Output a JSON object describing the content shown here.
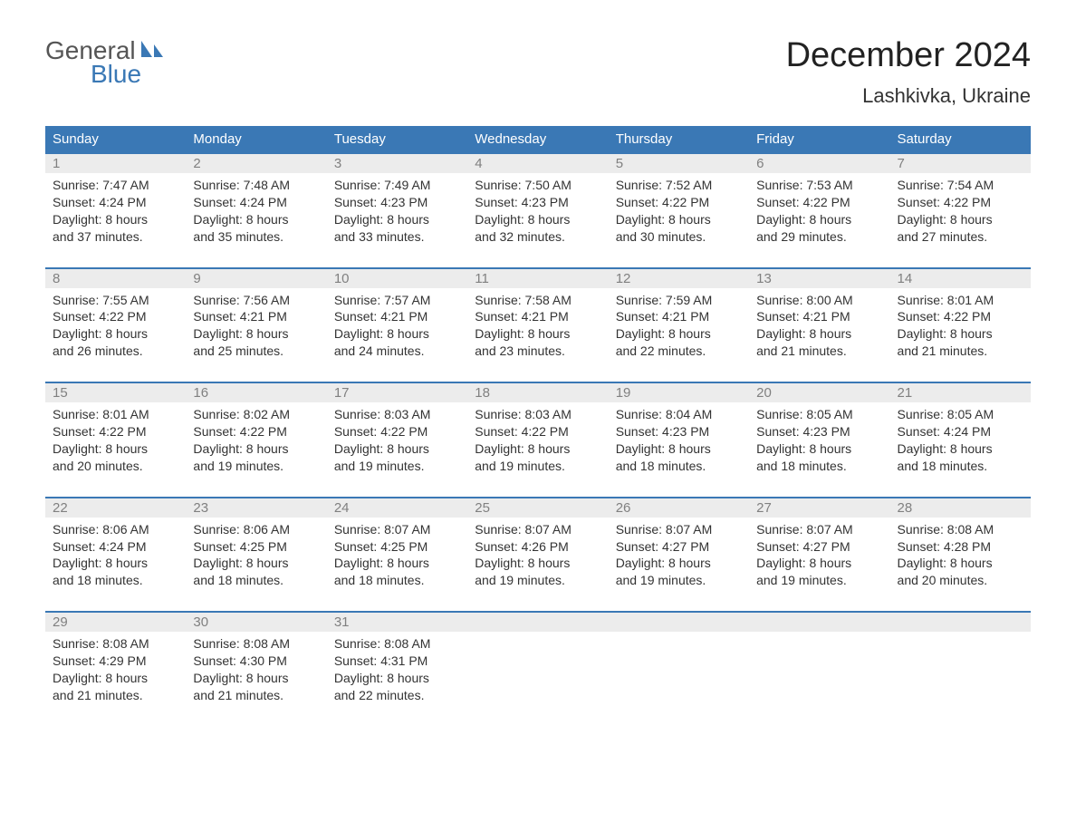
{
  "logo": {
    "text_general": "General",
    "text_blue": "Blue",
    "sail_color": "#3a78b5"
  },
  "title": "December 2024",
  "location": "Lashkivka, Ukraine",
  "colors": {
    "header_bg": "#3a78b5",
    "header_text": "#ffffff",
    "daynum_bg": "#ececec",
    "daynum_text": "#808080",
    "body_text": "#333333",
    "row_border": "#3a78b5",
    "page_bg": "#ffffff"
  },
  "day_headers": [
    "Sunday",
    "Monday",
    "Tuesday",
    "Wednesday",
    "Thursday",
    "Friday",
    "Saturday"
  ],
  "weeks": [
    [
      {
        "num": "1",
        "sunrise": "Sunrise: 7:47 AM",
        "sunset": "Sunset: 4:24 PM",
        "dl1": "Daylight: 8 hours",
        "dl2": "and 37 minutes."
      },
      {
        "num": "2",
        "sunrise": "Sunrise: 7:48 AM",
        "sunset": "Sunset: 4:24 PM",
        "dl1": "Daylight: 8 hours",
        "dl2": "and 35 minutes."
      },
      {
        "num": "3",
        "sunrise": "Sunrise: 7:49 AM",
        "sunset": "Sunset: 4:23 PM",
        "dl1": "Daylight: 8 hours",
        "dl2": "and 33 minutes."
      },
      {
        "num": "4",
        "sunrise": "Sunrise: 7:50 AM",
        "sunset": "Sunset: 4:23 PM",
        "dl1": "Daylight: 8 hours",
        "dl2": "and 32 minutes."
      },
      {
        "num": "5",
        "sunrise": "Sunrise: 7:52 AM",
        "sunset": "Sunset: 4:22 PM",
        "dl1": "Daylight: 8 hours",
        "dl2": "and 30 minutes."
      },
      {
        "num": "6",
        "sunrise": "Sunrise: 7:53 AM",
        "sunset": "Sunset: 4:22 PM",
        "dl1": "Daylight: 8 hours",
        "dl2": "and 29 minutes."
      },
      {
        "num": "7",
        "sunrise": "Sunrise: 7:54 AM",
        "sunset": "Sunset: 4:22 PM",
        "dl1": "Daylight: 8 hours",
        "dl2": "and 27 minutes."
      }
    ],
    [
      {
        "num": "8",
        "sunrise": "Sunrise: 7:55 AM",
        "sunset": "Sunset: 4:22 PM",
        "dl1": "Daylight: 8 hours",
        "dl2": "and 26 minutes."
      },
      {
        "num": "9",
        "sunrise": "Sunrise: 7:56 AM",
        "sunset": "Sunset: 4:21 PM",
        "dl1": "Daylight: 8 hours",
        "dl2": "and 25 minutes."
      },
      {
        "num": "10",
        "sunrise": "Sunrise: 7:57 AM",
        "sunset": "Sunset: 4:21 PM",
        "dl1": "Daylight: 8 hours",
        "dl2": "and 24 minutes."
      },
      {
        "num": "11",
        "sunrise": "Sunrise: 7:58 AM",
        "sunset": "Sunset: 4:21 PM",
        "dl1": "Daylight: 8 hours",
        "dl2": "and 23 minutes."
      },
      {
        "num": "12",
        "sunrise": "Sunrise: 7:59 AM",
        "sunset": "Sunset: 4:21 PM",
        "dl1": "Daylight: 8 hours",
        "dl2": "and 22 minutes."
      },
      {
        "num": "13",
        "sunrise": "Sunrise: 8:00 AM",
        "sunset": "Sunset: 4:21 PM",
        "dl1": "Daylight: 8 hours",
        "dl2": "and 21 minutes."
      },
      {
        "num": "14",
        "sunrise": "Sunrise: 8:01 AM",
        "sunset": "Sunset: 4:22 PM",
        "dl1": "Daylight: 8 hours",
        "dl2": "and 21 minutes."
      }
    ],
    [
      {
        "num": "15",
        "sunrise": "Sunrise: 8:01 AM",
        "sunset": "Sunset: 4:22 PM",
        "dl1": "Daylight: 8 hours",
        "dl2": "and 20 minutes."
      },
      {
        "num": "16",
        "sunrise": "Sunrise: 8:02 AM",
        "sunset": "Sunset: 4:22 PM",
        "dl1": "Daylight: 8 hours",
        "dl2": "and 19 minutes."
      },
      {
        "num": "17",
        "sunrise": "Sunrise: 8:03 AM",
        "sunset": "Sunset: 4:22 PM",
        "dl1": "Daylight: 8 hours",
        "dl2": "and 19 minutes."
      },
      {
        "num": "18",
        "sunrise": "Sunrise: 8:03 AM",
        "sunset": "Sunset: 4:22 PM",
        "dl1": "Daylight: 8 hours",
        "dl2": "and 19 minutes."
      },
      {
        "num": "19",
        "sunrise": "Sunrise: 8:04 AM",
        "sunset": "Sunset: 4:23 PM",
        "dl1": "Daylight: 8 hours",
        "dl2": "and 18 minutes."
      },
      {
        "num": "20",
        "sunrise": "Sunrise: 8:05 AM",
        "sunset": "Sunset: 4:23 PM",
        "dl1": "Daylight: 8 hours",
        "dl2": "and 18 minutes."
      },
      {
        "num": "21",
        "sunrise": "Sunrise: 8:05 AM",
        "sunset": "Sunset: 4:24 PM",
        "dl1": "Daylight: 8 hours",
        "dl2": "and 18 minutes."
      }
    ],
    [
      {
        "num": "22",
        "sunrise": "Sunrise: 8:06 AM",
        "sunset": "Sunset: 4:24 PM",
        "dl1": "Daylight: 8 hours",
        "dl2": "and 18 minutes."
      },
      {
        "num": "23",
        "sunrise": "Sunrise: 8:06 AM",
        "sunset": "Sunset: 4:25 PM",
        "dl1": "Daylight: 8 hours",
        "dl2": "and 18 minutes."
      },
      {
        "num": "24",
        "sunrise": "Sunrise: 8:07 AM",
        "sunset": "Sunset: 4:25 PM",
        "dl1": "Daylight: 8 hours",
        "dl2": "and 18 minutes."
      },
      {
        "num": "25",
        "sunrise": "Sunrise: 8:07 AM",
        "sunset": "Sunset: 4:26 PM",
        "dl1": "Daylight: 8 hours",
        "dl2": "and 19 minutes."
      },
      {
        "num": "26",
        "sunrise": "Sunrise: 8:07 AM",
        "sunset": "Sunset: 4:27 PM",
        "dl1": "Daylight: 8 hours",
        "dl2": "and 19 minutes."
      },
      {
        "num": "27",
        "sunrise": "Sunrise: 8:07 AM",
        "sunset": "Sunset: 4:27 PM",
        "dl1": "Daylight: 8 hours",
        "dl2": "and 19 minutes."
      },
      {
        "num": "28",
        "sunrise": "Sunrise: 8:08 AM",
        "sunset": "Sunset: 4:28 PM",
        "dl1": "Daylight: 8 hours",
        "dl2": "and 20 minutes."
      }
    ],
    [
      {
        "num": "29",
        "sunrise": "Sunrise: 8:08 AM",
        "sunset": "Sunset: 4:29 PM",
        "dl1": "Daylight: 8 hours",
        "dl2": "and 21 minutes."
      },
      {
        "num": "30",
        "sunrise": "Sunrise: 8:08 AM",
        "sunset": "Sunset: 4:30 PM",
        "dl1": "Daylight: 8 hours",
        "dl2": "and 21 minutes."
      },
      {
        "num": "31",
        "sunrise": "Sunrise: 8:08 AM",
        "sunset": "Sunset: 4:31 PM",
        "dl1": "Daylight: 8 hours",
        "dl2": "and 22 minutes."
      },
      null,
      null,
      null,
      null
    ]
  ]
}
